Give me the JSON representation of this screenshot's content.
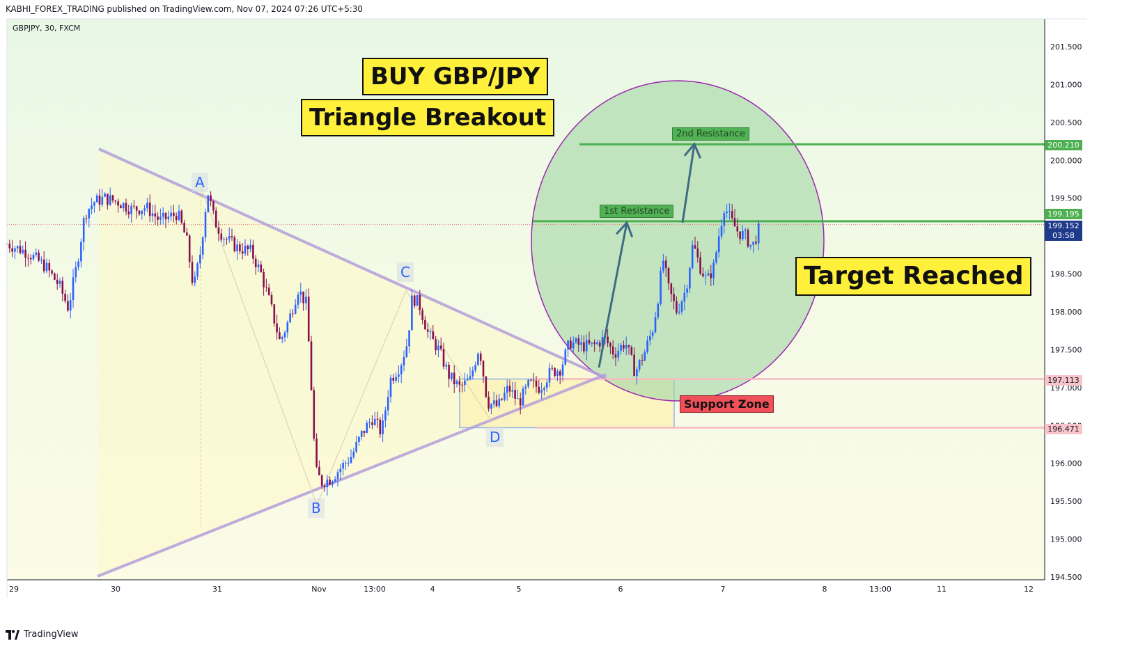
{
  "header": {
    "published_line": "KABHI_FOREX_TRADING published on TradingView.com, Nov 07, 2024 07:26 UTC+5:30",
    "symbol_line": "GBPJPY, 30, FXCM"
  },
  "footer": {
    "brand": "TradingView",
    "logo_icon": "tradingview-logo-icon"
  },
  "annotations": {
    "buy_label": "BUY GBP/JPY",
    "pattern_label": "Triangle Breakout",
    "target_label": "Target Reached",
    "res1_label": "1st Resistance",
    "res2_label": "2nd Resistance",
    "support_label": "Support Zone",
    "points": {
      "A": "A",
      "B": "B",
      "C": "C",
      "D": "D"
    }
  },
  "price_tags": {
    "res2": "200.210",
    "res1": "199.195",
    "last_price": "199.152",
    "countdown": "03:58",
    "support_top": "197.113",
    "support_bottom": "196.471"
  },
  "colors": {
    "up_candle": "#2962ff",
    "down_candle": "#880e4f",
    "resistance": "#4caf50",
    "support": "#f8b9c0",
    "trendline": "#b39ddb",
    "circle_fill": "#a5d6a7",
    "circle_stroke": "#9c27b0",
    "label_yellow": "#fff03c",
    "last_price": "#1e3a8a"
  },
  "chart_data": {
    "type": "candlestick",
    "symbol": "GBPJPY",
    "timeframe": "30",
    "source": "FXCM",
    "ylim": [
      194.5,
      202.0
    ],
    "y_ticks": [
      "201.500",
      "201.000",
      "200.500",
      "200.000",
      "199.500",
      "199.000",
      "198.500",
      "198.000",
      "197.500",
      "197.000",
      "196.500",
      "196.000",
      "195.500",
      "195.000",
      "194.500"
    ],
    "x_ticks": [
      "29",
      "30",
      "31",
      "Nov",
      "13:00",
      "4",
      "5",
      "6",
      "7",
      "8",
      "13:00",
      "11",
      "12"
    ],
    "levels": {
      "second_resistance": 200.21,
      "first_resistance": 199.195,
      "support_top": 197.113,
      "support_bottom": 196.471,
      "last_price": 199.152
    },
    "close_path": [
      [
        0,
        198.9
      ],
      [
        30,
        198.78
      ],
      [
        55,
        198.6
      ],
      [
        75,
        198.35
      ],
      [
        88,
        198.05
      ],
      [
        100,
        198.6
      ],
      [
        112,
        199.3
      ],
      [
        125,
        199.45
      ],
      [
        140,
        199.5
      ],
      [
        160,
        199.45
      ],
      [
        180,
        199.35
      ],
      [
        200,
        199.38
      ],
      [
        220,
        199.2
      ],
      [
        245,
        199.3
      ],
      [
        258,
        198.95
      ],
      [
        268,
        198.3
      ],
      [
        278,
        198.8
      ],
      [
        288,
        199.6
      ],
      [
        298,
        199.2
      ],
      [
        310,
        199.0
      ],
      [
        330,
        198.85
      ],
      [
        350,
        198.8
      ],
      [
        365,
        198.5
      ],
      [
        378,
        198.1
      ],
      [
        392,
        197.6
      ],
      [
        405,
        197.9
      ],
      [
        418,
        198.3
      ],
      [
        430,
        198.1
      ],
      [
        437,
        197.0
      ],
      [
        443,
        195.9
      ],
      [
        452,
        195.75
      ],
      [
        465,
        195.8
      ],
      [
        480,
        195.95
      ],
      [
        495,
        196.1
      ],
      [
        510,
        196.4
      ],
      [
        525,
        196.6
      ],
      [
        538,
        196.4
      ],
      [
        550,
        197.1
      ],
      [
        565,
        197.3
      ],
      [
        575,
        197.6
      ],
      [
        582,
        198.2
      ],
      [
        592,
        198.1
      ],
      [
        605,
        197.7
      ],
      [
        620,
        197.5
      ],
      [
        635,
        197.15
      ],
      [
        650,
        197.0
      ],
      [
        665,
        197.1
      ],
      [
        678,
        197.55
      ],
      [
        690,
        196.8
      ],
      [
        705,
        196.75
      ],
      [
        720,
        197.0
      ],
      [
        735,
        196.8
      ],
      [
        750,
        197.05
      ],
      [
        765,
        197.0
      ],
      [
        780,
        197.2
      ],
      [
        795,
        197.25
      ],
      [
        808,
        197.6
      ],
      [
        825,
        197.55
      ],
      [
        842,
        197.55
      ],
      [
        858,
        197.65
      ],
      [
        872,
        197.45
      ],
      [
        888,
        197.6
      ],
      [
        902,
        197.2
      ],
      [
        915,
        197.45
      ],
      [
        928,
        197.8
      ],
      [
        935,
        198.2
      ],
      [
        942,
        198.7
      ],
      [
        950,
        198.3
      ],
      [
        962,
        198.0
      ],
      [
        975,
        198.3
      ],
      [
        985,
        198.9
      ],
      [
        995,
        198.6
      ],
      [
        1005,
        198.4
      ],
      [
        1015,
        198.6
      ],
      [
        1022,
        199.0
      ],
      [
        1030,
        199.4
      ],
      [
        1040,
        199.2
      ],
      [
        1050,
        199.05
      ],
      [
        1060,
        199.0
      ],
      [
        1070,
        198.85
      ],
      [
        1082,
        199.15
      ]
    ],
    "pattern_points": {
      "A": 199.66,
      "B": 195.45,
      "C": 198.28,
      "D": 196.55
    }
  }
}
